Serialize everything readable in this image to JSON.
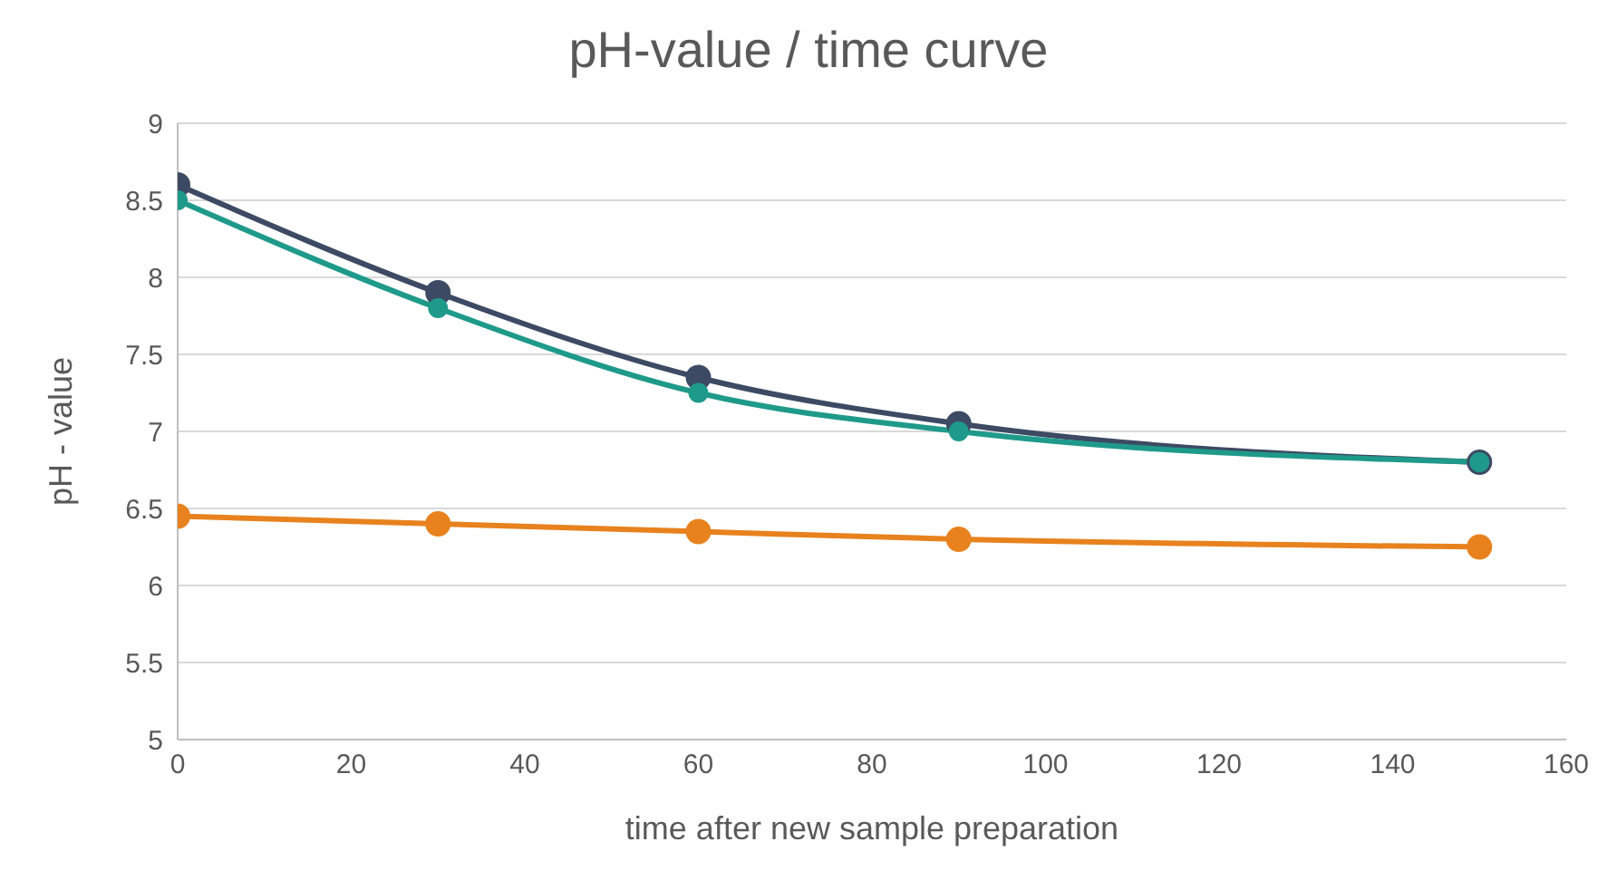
{
  "chart_data": {
    "type": "line",
    "title": "pH-value / time curve",
    "xlabel": "time after new sample preparation",
    "ylabel": "pH - value",
    "x": [
      0,
      30,
      60,
      90,
      150
    ],
    "series": [
      {
        "color": "#e8821e",
        "values": [
          6.45,
          6.4,
          6.35,
          6.3,
          6.25
        ]
      },
      {
        "color": "#3d4a63",
        "values": [
          8.6,
          7.9,
          7.35,
          7.05,
          6.8
        ]
      },
      {
        "color": "#1f9a8a",
        "values": [
          8.5,
          7.8,
          7.25,
          7.0,
          6.8
        ]
      }
    ],
    "xlim": [
      0,
      160
    ],
    "xticks": [
      0,
      20,
      40,
      60,
      80,
      100,
      120,
      140,
      160
    ],
    "ylim": [
      5,
      9
    ],
    "yticks": [
      5,
      5.5,
      6,
      6.5,
      7,
      7.5,
      8,
      8.5,
      9
    ],
    "grid": "y",
    "marker": "circle",
    "line_style": "solid",
    "legend": false
  }
}
